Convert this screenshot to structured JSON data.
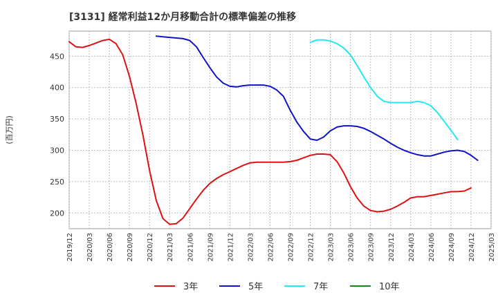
{
  "chart_data": {
    "type": "line",
    "title": "[3131]  経常利益12か月移動合計の標準偏差の推移",
    "ylabel": "(百万円)",
    "xlabel": "",
    "ylim": [
      175,
      490
    ],
    "yticks": [
      200,
      250,
      300,
      350,
      400,
      450
    ],
    "grid": true,
    "legend_position": "bottom",
    "x_ticks": [
      "2019/12",
      "2020/03",
      "2020/06",
      "2020/09",
      "2020/12",
      "2021/03",
      "2021/06",
      "2021/09",
      "2021/12",
      "2022/03",
      "2022/06",
      "2022/09",
      "2022/12",
      "2023/03",
      "2023/06",
      "2023/09",
      "2023/12",
      "2024/03",
      "2024/06",
      "2024/09",
      "2024/12",
      "2025/03"
    ],
    "series": [
      {
        "name": "3年",
        "color": "#dd1111",
        "start": "2019/12",
        "values": [
          473,
          465,
          464,
          467,
          471,
          475,
          477,
          470,
          452,
          418,
          375,
          325,
          268,
          220,
          191,
          182,
          183,
          192,
          207,
          222,
          236,
          247,
          255,
          261,
          266,
          271,
          276,
          280,
          281,
          281,
          281,
          281,
          281,
          282,
          284,
          288,
          292,
          294,
          294,
          293,
          282,
          264,
          242,
          224,
          211,
          204,
          202,
          203,
          206,
          211,
          217,
          224,
          226,
          226,
          228,
          230,
          232,
          234,
          234,
          235,
          240
        ]
      },
      {
        "name": "5年",
        "color": "#1111cc",
        "start": "2021/01",
        "values": [
          482,
          481,
          480,
          479,
          478,
          475,
          465,
          448,
          432,
          417,
          407,
          402,
          401,
          403,
          404,
          404,
          404,
          402,
          396,
          386,
          364,
          345,
          330,
          318,
          316,
          321,
          331,
          337,
          339,
          339,
          338,
          335,
          330,
          324,
          318,
          311,
          305,
          300,
          296,
          293,
          291,
          291,
          294,
          297,
          299,
          300,
          298,
          292,
          284
        ]
      },
      {
        "name": "7年",
        "color": "#22e8f0",
        "start": "2022/12",
        "values": [
          472,
          476,
          476,
          474,
          470,
          463,
          452,
          435,
          417,
          400,
          386,
          378,
          376,
          376,
          376,
          376,
          378,
          376,
          371,
          360,
          346,
          332,
          317
        ]
      },
      {
        "name": "10年",
        "color": "#118811",
        "start": "2024/12",
        "values": []
      }
    ]
  }
}
